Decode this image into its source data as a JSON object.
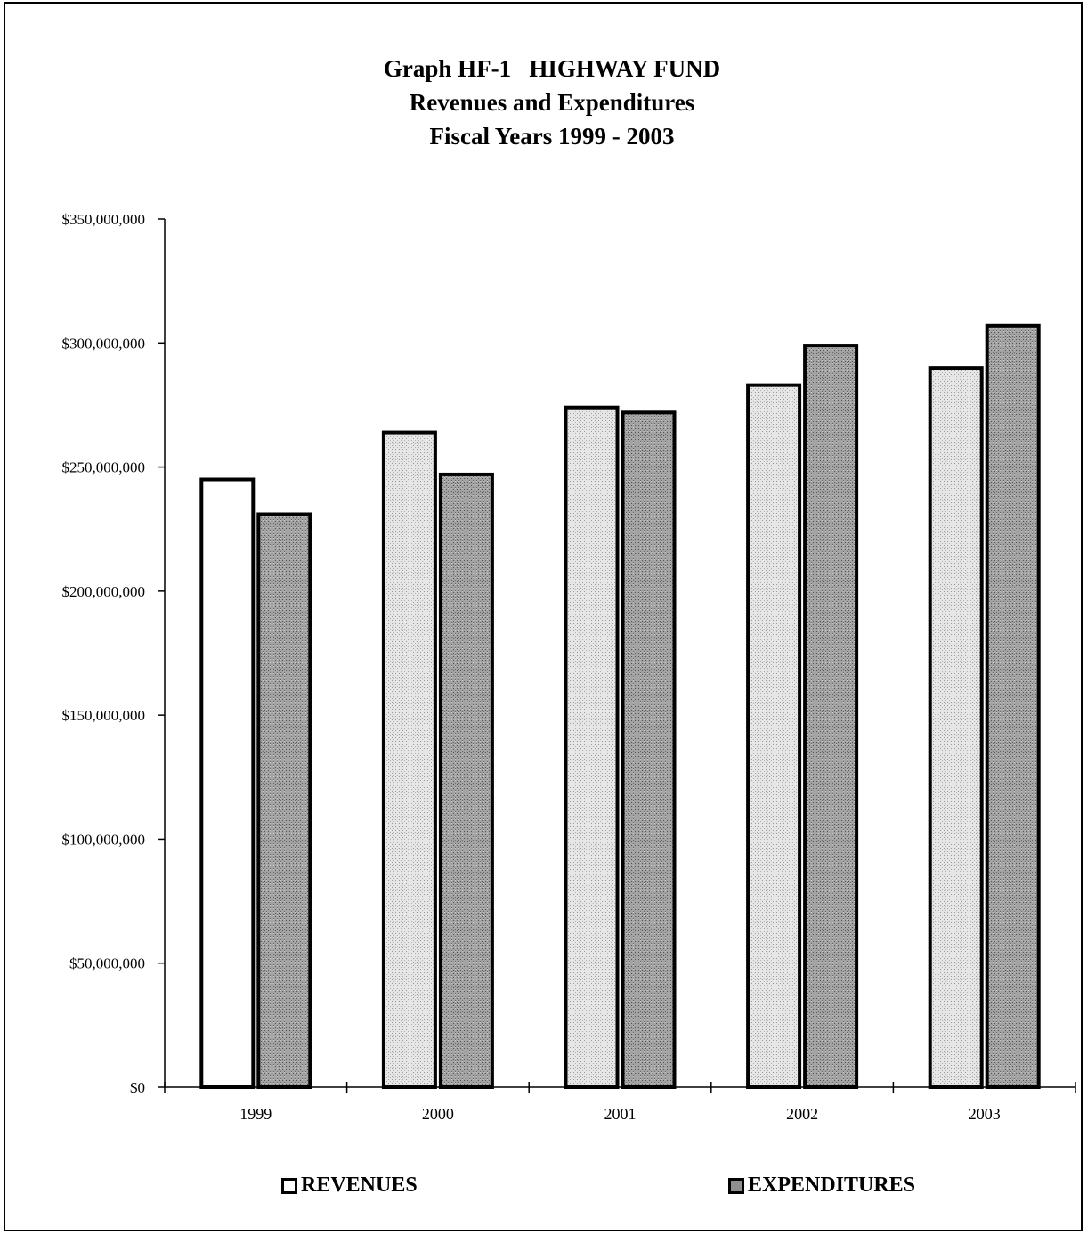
{
  "chart_data": {
    "type": "bar",
    "title_lines": [
      "Graph HF-1   HIGHWAY FUND",
      "Revenues and Expenditures",
      "Fiscal Years 1999 - 2003"
    ],
    "categories": [
      "1999",
      "2000",
      "2001",
      "2002",
      "2003"
    ],
    "series": [
      {
        "name": "REVENUES",
        "values": [
          245000000,
          264000000,
          274000000,
          283000000,
          290000000
        ],
        "color": "#d8d8d8"
      },
      {
        "name": "EXPENDITURES",
        "values": [
          231000000,
          247000000,
          272000000,
          299000000,
          307000000
        ],
        "color": "#8f8f8f"
      }
    ],
    "yticks": [
      "$0",
      "$50,000,000",
      "$100,000,000",
      "$150,000,000",
      "$200,000,000",
      "$250,000,000",
      "$300,000,000",
      "$350,000,000"
    ],
    "ylim": [
      0,
      350000000
    ],
    "grid": false,
    "legend_position": "bottom"
  }
}
